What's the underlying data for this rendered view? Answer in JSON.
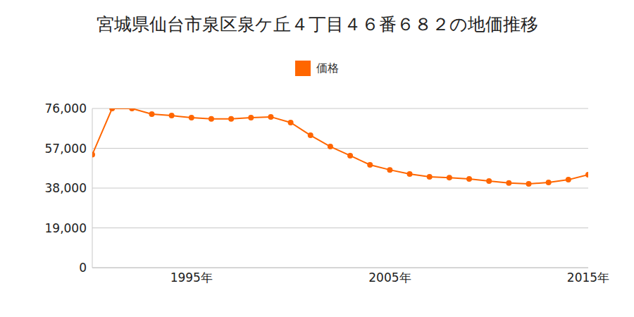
{
  "chart_data": {
    "type": "line",
    "title": "宮城県仙台市泉区泉ケ丘４丁目４６番６８２の地価推移",
    "x": [
      1990,
      1991,
      1992,
      1993,
      1994,
      1995,
      1996,
      1997,
      1998,
      1999,
      2000,
      2001,
      2002,
      2003,
      2004,
      2005,
      2006,
      2007,
      2008,
      2009,
      2010,
      2011,
      2012,
      2013,
      2014,
      2015
    ],
    "series": [
      {
        "name": "価格",
        "color": "#ff6600",
        "marker": "circle",
        "values": [
          54000,
          76000,
          76000,
          73300,
          72600,
          71600,
          71000,
          71000,
          71600,
          72000,
          69300,
          63200,
          57800,
          53500,
          49100,
          46700,
          44700,
          43400,
          43000,
          42400,
          41400,
          40400,
          40000,
          40700,
          42000,
          44400
        ]
      }
    ],
    "xlim": [
      1990,
      2015
    ],
    "xticks": [
      {
        "value": 1995,
        "label": "1995年"
      },
      {
        "value": 2005,
        "label": "2005年"
      },
      {
        "value": 2015,
        "label": "2015年"
      }
    ],
    "ylim": [
      0,
      76000
    ],
    "yticks": [
      0,
      {
        "value": 19000,
        "label": "19,000"
      },
      {
        "value": 38000,
        "label": "38,000"
      },
      {
        "value": 57000,
        "label": "57,000"
      },
      {
        "value": 76000,
        "label": "76,000"
      }
    ],
    "grid": true,
    "legend": "top"
  }
}
